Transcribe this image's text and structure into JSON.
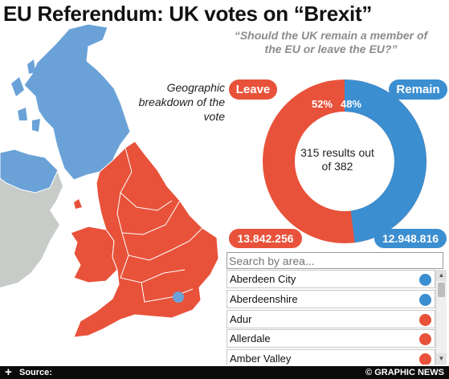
{
  "header": {
    "title": "EU Referendum: UK votes on “Brexit”",
    "question": "“Should the UK remain a member of the EU or leave the EU?”"
  },
  "map": {
    "caption": "Geographic breakdown of the vote",
    "colors": {
      "leave": "#e8523a",
      "remain": "#6aa2d8",
      "other": "#c7ccc9"
    }
  },
  "result": {
    "leave_label": "Leave",
    "remain_label": "Remain",
    "leave_pct_text": "52%",
    "remain_pct_text": "48%",
    "leave_pct": 52,
    "remain_pct": 48,
    "progress_text": "315 results out of 382",
    "leave_total": "13.842.256",
    "remain_total": "12.948.816",
    "colors": {
      "leave": "#e8523a",
      "remain": "#3b8ed0"
    }
  },
  "search": {
    "placeholder": "Search by area..."
  },
  "areas": [
    {
      "name": "Aberdeen City",
      "result": "remain"
    },
    {
      "name": "Aberdeenshire",
      "result": "remain"
    },
    {
      "name": "Adur",
      "result": "leave"
    },
    {
      "name": "Allerdale",
      "result": "leave"
    },
    {
      "name": "Amber Valley",
      "result": "leave"
    }
  ],
  "footer": {
    "source_label": "Source:",
    "credit": "© GRAPHIC NEWS"
  }
}
